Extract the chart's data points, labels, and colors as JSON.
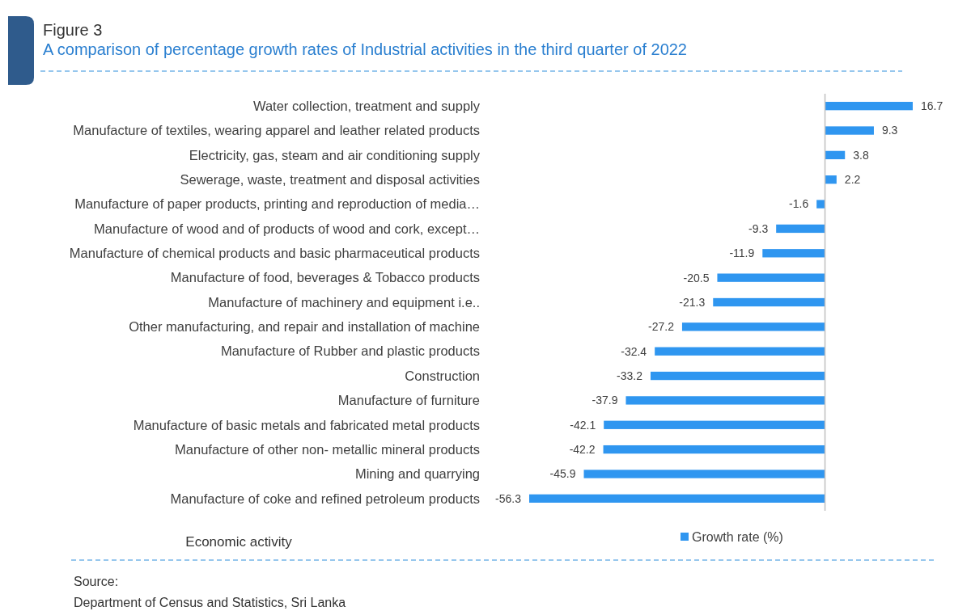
{
  "chart_data": {
    "type": "bar",
    "orientation": "horizontal",
    "title": "Figure 3",
    "subtitle": "A comparison of percentage growth rates of Industrial activities in the third quarter of 2022",
    "ylabel": "Economic activity",
    "categories": [
      "Water collection, treatment and supply",
      "Manufacture of textiles, wearing apparel and leather related products",
      "Electricity, gas, steam and air conditioning supply",
      "Sewerage, waste, treatment and disposal activities",
      "Manufacture of paper products, printing and reproduction of media…",
      "Manufacture of wood and of products of wood and cork, except…",
      "Manufacture of chemical products and basic pharmaceutical products",
      "Manufacture of food, beverages & Tobacco products",
      "Manufacture of machinery and equipment i.e..",
      "Other manufacturing, and repair and installation of machine",
      "Manufacture of Rubber and plastic products",
      "Construction",
      "Manufacture of furniture",
      "Manufacture of basic metals and fabricated metal products",
      "Manufacture of other non- metallic mineral products",
      "Mining and quarrying",
      "Manufacture of coke and refined petroleum products"
    ],
    "series": [
      {
        "name": "Growth rate (%)",
        "color": "#2f96f0",
        "values": [
          16.7,
          9.3,
          3.8,
          2.2,
          -1.6,
          -9.3,
          -11.9,
          -20.5,
          -21.3,
          -27.2,
          -32.4,
          -33.2,
          -37.9,
          -42.1,
          -42.2,
          -45.9,
          -56.3
        ]
      }
    ],
    "data_labels": true,
    "legend": "bottom",
    "annotations": [
      "Source:",
      "Department of Census and Statistics, Sri Lanka"
    ]
  }
}
